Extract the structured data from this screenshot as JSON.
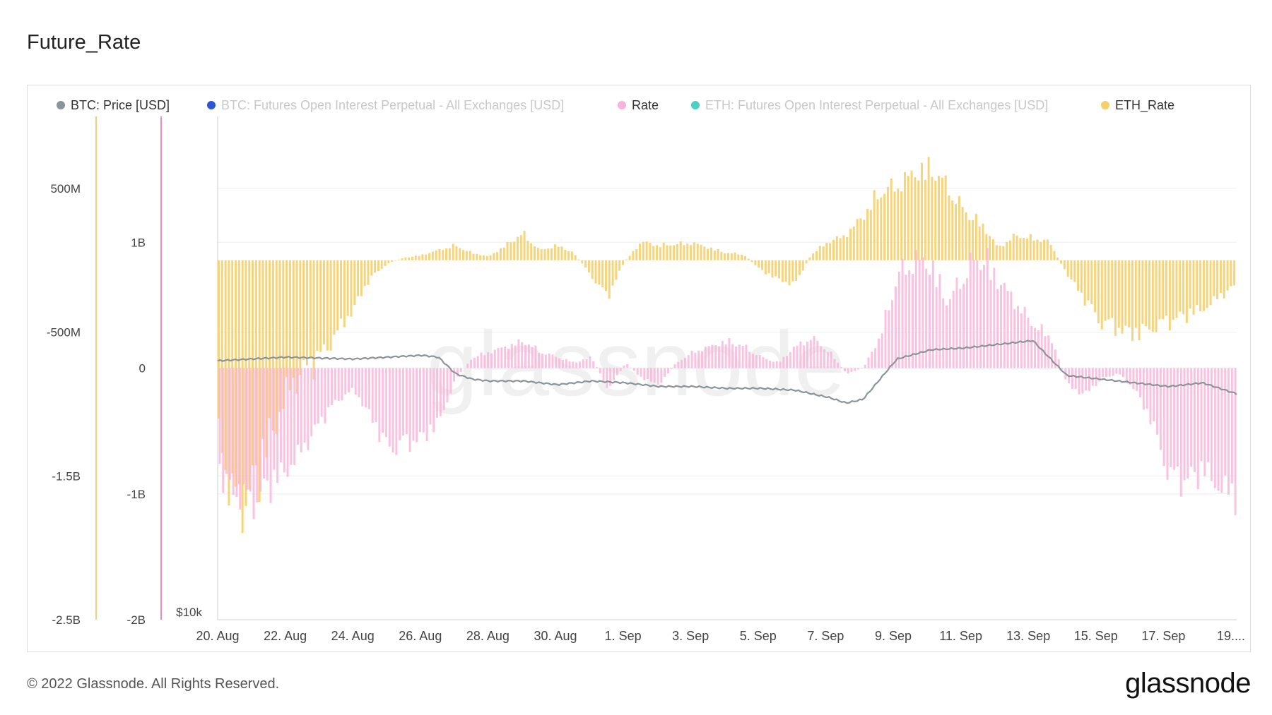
{
  "page": {
    "title": "Future_Rate",
    "footer": "© 2022 Glassnode. All Rights Reserved.",
    "brand": "glassnode",
    "watermark": "glassnode"
  },
  "colors": {
    "btc_price": "#8a949b",
    "btc_oi": "#2b57d6",
    "rate": "#f7b3d8",
    "eth_oi": "#4fd0c6",
    "eth_rate": "#f5cf6a",
    "eth_rate_axis": "#f0d27a",
    "rate_axis": "#e98cc2",
    "grid": "#eeeeee",
    "watermark": "#e4e4e4"
  },
  "chart_data": {
    "type": "bar",
    "title": "Future_Rate",
    "legend": [
      {
        "name": "BTC: Price [USD]",
        "icon": "circle",
        "active": true
      },
      {
        "name": "BTC: Futures Open Interest Perpetual - All Exchanges [USD]",
        "icon": "circle",
        "active": false
      },
      {
        "name": "Rate",
        "icon": "circle",
        "active": true
      },
      {
        "name": "ETH: Futures Open Interest Perpetual - All Exchanges [USD]",
        "icon": "circle",
        "active": false
      },
      {
        "name": "ETH_Rate",
        "icon": "circle",
        "active": true
      }
    ],
    "axes": {
      "eth_rate": {
        "ticks": [
          "500M",
          "-500M",
          "-1.5B",
          "-2.5B"
        ],
        "values": [
          500000000,
          -500000000,
          -1500000000,
          -2500000000
        ],
        "range": [
          -2500000000,
          1000000000
        ]
      },
      "rate": {
        "ticks": [
          "1B",
          "0",
          "-1B",
          "-2B"
        ],
        "values": [
          1000000000,
          0,
          -1000000000,
          -2000000000
        ],
        "range": [
          -2000000000,
          2000000000
        ]
      },
      "price": {
        "ticks": [
          "$10k"
        ],
        "scale": "log"
      }
    },
    "x_labels": [
      "20. Aug",
      "22. Aug",
      "24. Aug",
      "26. Aug",
      "28. Aug",
      "30. Aug",
      "1. Sep",
      "3. Sep",
      "5. Sep",
      "7. Sep",
      "9. Sep",
      "11. Sep",
      "13. Sep",
      "15. Sep",
      "17. Sep",
      "19...."
    ],
    "x_range_days": [
      0,
      30
    ],
    "series": [
      {
        "name": "Rate",
        "unit": "USD",
        "x_days": [
          0,
          0.5,
          1,
          1.5,
          2,
          2.5,
          3,
          3.5,
          4,
          4.5,
          5,
          5.5,
          6,
          6.5,
          7,
          7.5,
          8,
          8.5,
          9,
          9.5,
          10,
          10.5,
          11,
          11.5,
          12,
          12.5,
          13,
          13.5,
          14,
          14.5,
          15,
          15.5,
          16,
          16.5,
          17,
          17.5,
          18,
          18.5,
          19,
          19.5,
          20,
          20.5,
          21,
          21.5,
          22,
          22.5,
          23,
          23.5,
          24,
          24.5,
          25,
          25.5,
          26,
          26.5,
          27,
          27.5,
          28,
          28.5,
          29,
          29.5,
          30
        ],
        "values": [
          -1000000000,
          -1150000000,
          -1250000000,
          -1100000000,
          -950000000,
          -750000000,
          -500000000,
          -300000000,
          -200000000,
          -450000000,
          -750000000,
          -700000000,
          -650000000,
          -500000000,
          -100000000,
          100000000,
          150000000,
          200000000,
          250000000,
          150000000,
          100000000,
          50000000,
          100000000,
          -200000000,
          50000000,
          -100000000,
          -150000000,
          50000000,
          150000000,
          200000000,
          250000000,
          200000000,
          100000000,
          50000000,
          200000000,
          280000000,
          150000000,
          -50000000,
          0,
          300000000,
          850000000,
          1000000000,
          950000000,
          600000000,
          900000000,
          1050000000,
          800000000,
          600000000,
          400000000,
          300000000,
          -150000000,
          -250000000,
          -100000000,
          -50000000,
          -200000000,
          -500000000,
          -1000000000,
          -1050000000,
          -950000000,
          -1100000000,
          -1200000000
        ]
      },
      {
        "name": "ETH_Rate",
        "unit": "USD",
        "x_days": [
          0,
          0.5,
          1,
          1.5,
          2,
          2.5,
          3,
          3.5,
          4,
          4.5,
          5,
          5.5,
          6,
          6.5,
          7,
          7.5,
          8,
          8.5,
          9,
          9.5,
          10,
          10.5,
          11,
          11.5,
          12,
          12.5,
          13,
          13.5,
          14,
          14.5,
          15,
          15.5,
          16,
          16.5,
          17,
          17.5,
          18,
          18.5,
          19,
          19.5,
          20,
          20.5,
          21,
          21.5,
          22,
          22.5,
          23,
          23.5,
          24,
          24.5,
          25,
          25.5,
          26,
          26.5,
          27,
          27.5,
          28,
          28.5,
          29,
          29.5,
          30
        ],
        "values": [
          -1300000000,
          -2000000000,
          -1900000000,
          -1500000000,
          -1100000000,
          -900000000,
          -800000000,
          -600000000,
          -400000000,
          -150000000,
          -30000000,
          20000000,
          40000000,
          80000000,
          120000000,
          60000000,
          30000000,
          120000000,
          220000000,
          80000000,
          120000000,
          60000000,
          -120000000,
          -300000000,
          -10000000,
          150000000,
          120000000,
          130000000,
          140000000,
          100000000,
          60000000,
          50000000,
          -80000000,
          -150000000,
          -200000000,
          50000000,
          150000000,
          200000000,
          350000000,
          550000000,
          600000000,
          700000000,
          750000000,
          600000000,
          400000000,
          300000000,
          100000000,
          200000000,
          180000000,
          150000000,
          -100000000,
          -300000000,
          -500000000,
          -550000000,
          -600000000,
          -550000000,
          -500000000,
          -450000000,
          -400000000,
          -300000000,
          -200000000
        ]
      },
      {
        "name": "BTC: Price [USD]",
        "unit": "USD",
        "x_days": [
          0,
          1,
          2,
          3,
          4,
          5,
          6,
          6.5,
          7,
          7.5,
          8,
          9,
          10,
          11,
          12,
          13,
          14,
          15,
          16,
          17,
          18,
          18.5,
          19,
          20,
          21,
          22,
          23,
          24,
          25,
          26,
          27,
          28,
          29,
          30
        ],
        "values": [
          21300,
          21400,
          21500,
          21450,
          21400,
          21500,
          21600,
          21500,
          20600,
          20300,
          20200,
          20200,
          20000,
          20200,
          20100,
          19900,
          19900,
          19800,
          19800,
          19700,
          19300,
          19000,
          19200,
          21400,
          21900,
          22000,
          22200,
          22400,
          20500,
          20300,
          20100,
          19900,
          20100,
          19500
        ]
      }
    ]
  }
}
